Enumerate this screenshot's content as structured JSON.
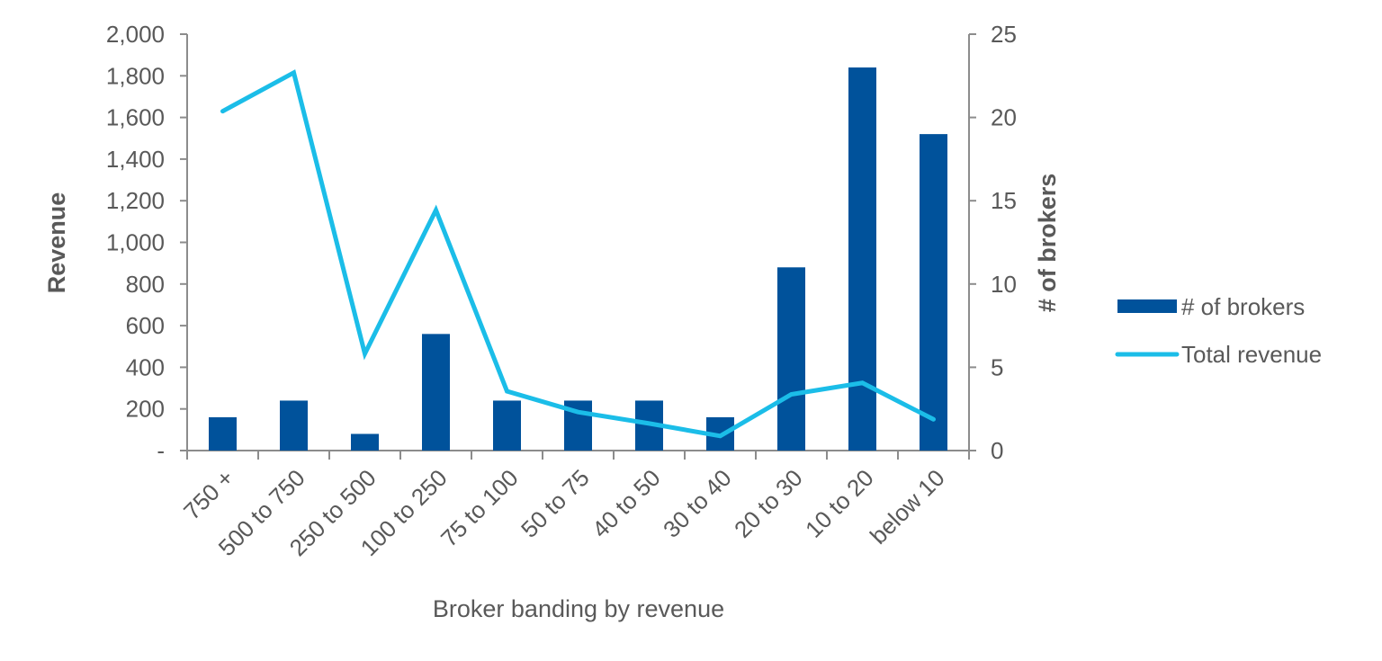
{
  "chart_data": {
    "type": "bar",
    "categories": [
      "750 +",
      "500 to 750",
      "250 to 500",
      "100 to 250",
      "75 to 100",
      "50 to 75",
      "40 to 50",
      "30 to 40",
      "20 to 30",
      "10 to 20",
      "below 10"
    ],
    "series": [
      {
        "name": "# of brokers",
        "type": "bar",
        "axis": "right",
        "color": "#00529B",
        "values": [
          2,
          3,
          1,
          7,
          3,
          3,
          3,
          2,
          11,
          23,
          19
        ]
      },
      {
        "name": "Total revenue",
        "type": "line",
        "axis": "left",
        "color": "#1BBDE8",
        "values": [
          1630,
          1815,
          465,
          1155,
          285,
          185,
          130,
          70,
          270,
          325,
          150
        ]
      }
    ],
    "xlabel": "Broker banding by revenue",
    "ylabel": "Revenue",
    "y2label": "# of brokers",
    "ylim": [
      0,
      2000
    ],
    "y2lim": [
      0,
      25
    ],
    "yticks": [
      "-",
      "200",
      "400",
      "600",
      "800",
      "1,000",
      "1,200",
      "1,400",
      "1,600",
      "1,800",
      "2,000"
    ],
    "y2ticks": [
      "0",
      "5",
      "10",
      "15",
      "20",
      "25"
    ],
    "grid": false,
    "legend_position": "right"
  }
}
